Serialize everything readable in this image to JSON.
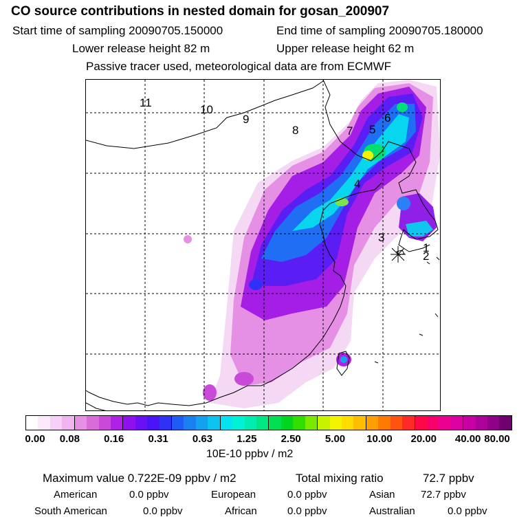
{
  "header": {
    "title": "CO  source contributions in nested domain for gosan_200907",
    "start_time": "Start time of sampling 20090705.150000",
    "end_time": "End time of sampling 20090705.180000",
    "lower_height": "Lower release height   82 m",
    "upper_height": "Upper release height   62 m",
    "tracer_note": "Passive tracer used, meteorological data are from ECMWF"
  },
  "map": {
    "receptor_labels": [
      "11",
      "10",
      "9",
      "8",
      "7",
      "5",
      "6",
      "4",
      "3",
      "1",
      "2"
    ]
  },
  "colorbar": {
    "colors": [
      "#ffffff",
      "#fbe8fb",
      "#f6d0f6",
      "#f0b4f0",
      "#e58fe5",
      "#d86dd9",
      "#c94ad9",
      "#b020e8",
      "#8f10ef",
      "#6a10f5",
      "#4b14f6",
      "#2f32f6",
      "#1f5cf5",
      "#1a80f2",
      "#13a2f0",
      "#0cc2ee",
      "#05e3f0",
      "#00f0d8",
      "#00ecb0",
      "#00e683",
      "#00de52",
      "#00d520",
      "#30df00",
      "#7aea00",
      "#c8f300",
      "#f3f200",
      "#ffdc00",
      "#ffbe00",
      "#ff9e00",
      "#ff7a00",
      "#ff5410",
      "#ff2a28",
      "#ff0848",
      "#f7006e",
      "#ec0090",
      "#dc00a2",
      "#c800a4",
      "#b0009c",
      "#900088",
      "#700070"
    ],
    "tick_labels": [
      "0.00",
      "0.08",
      "0.16",
      "0.31",
      "0.63",
      "1.25",
      "2.50",
      "5.00",
      "10.00",
      "20.00",
      "40.00",
      "80.00"
    ],
    "unit": "10E-10 ppbv / m2"
  },
  "summary": {
    "max_value_label": "Maximum value  0.722E-09 ppbv / m2",
    "total_mixing_label": "Total mixing ratio",
    "total_mixing_value": "72.7 ppbv",
    "regions": [
      {
        "name": "American",
        "value": "0.0 ppbv"
      },
      {
        "name": "European",
        "value": "0.0 ppbv"
      },
      {
        "name": "Asian",
        "value": "72.7 ppbv"
      },
      {
        "name": "South American",
        "value": "0.0 ppbv"
      },
      {
        "name": "African",
        "value": "0.0 ppbv"
      },
      {
        "name": "Australian",
        "value": "0.0 ppbv"
      }
    ]
  }
}
